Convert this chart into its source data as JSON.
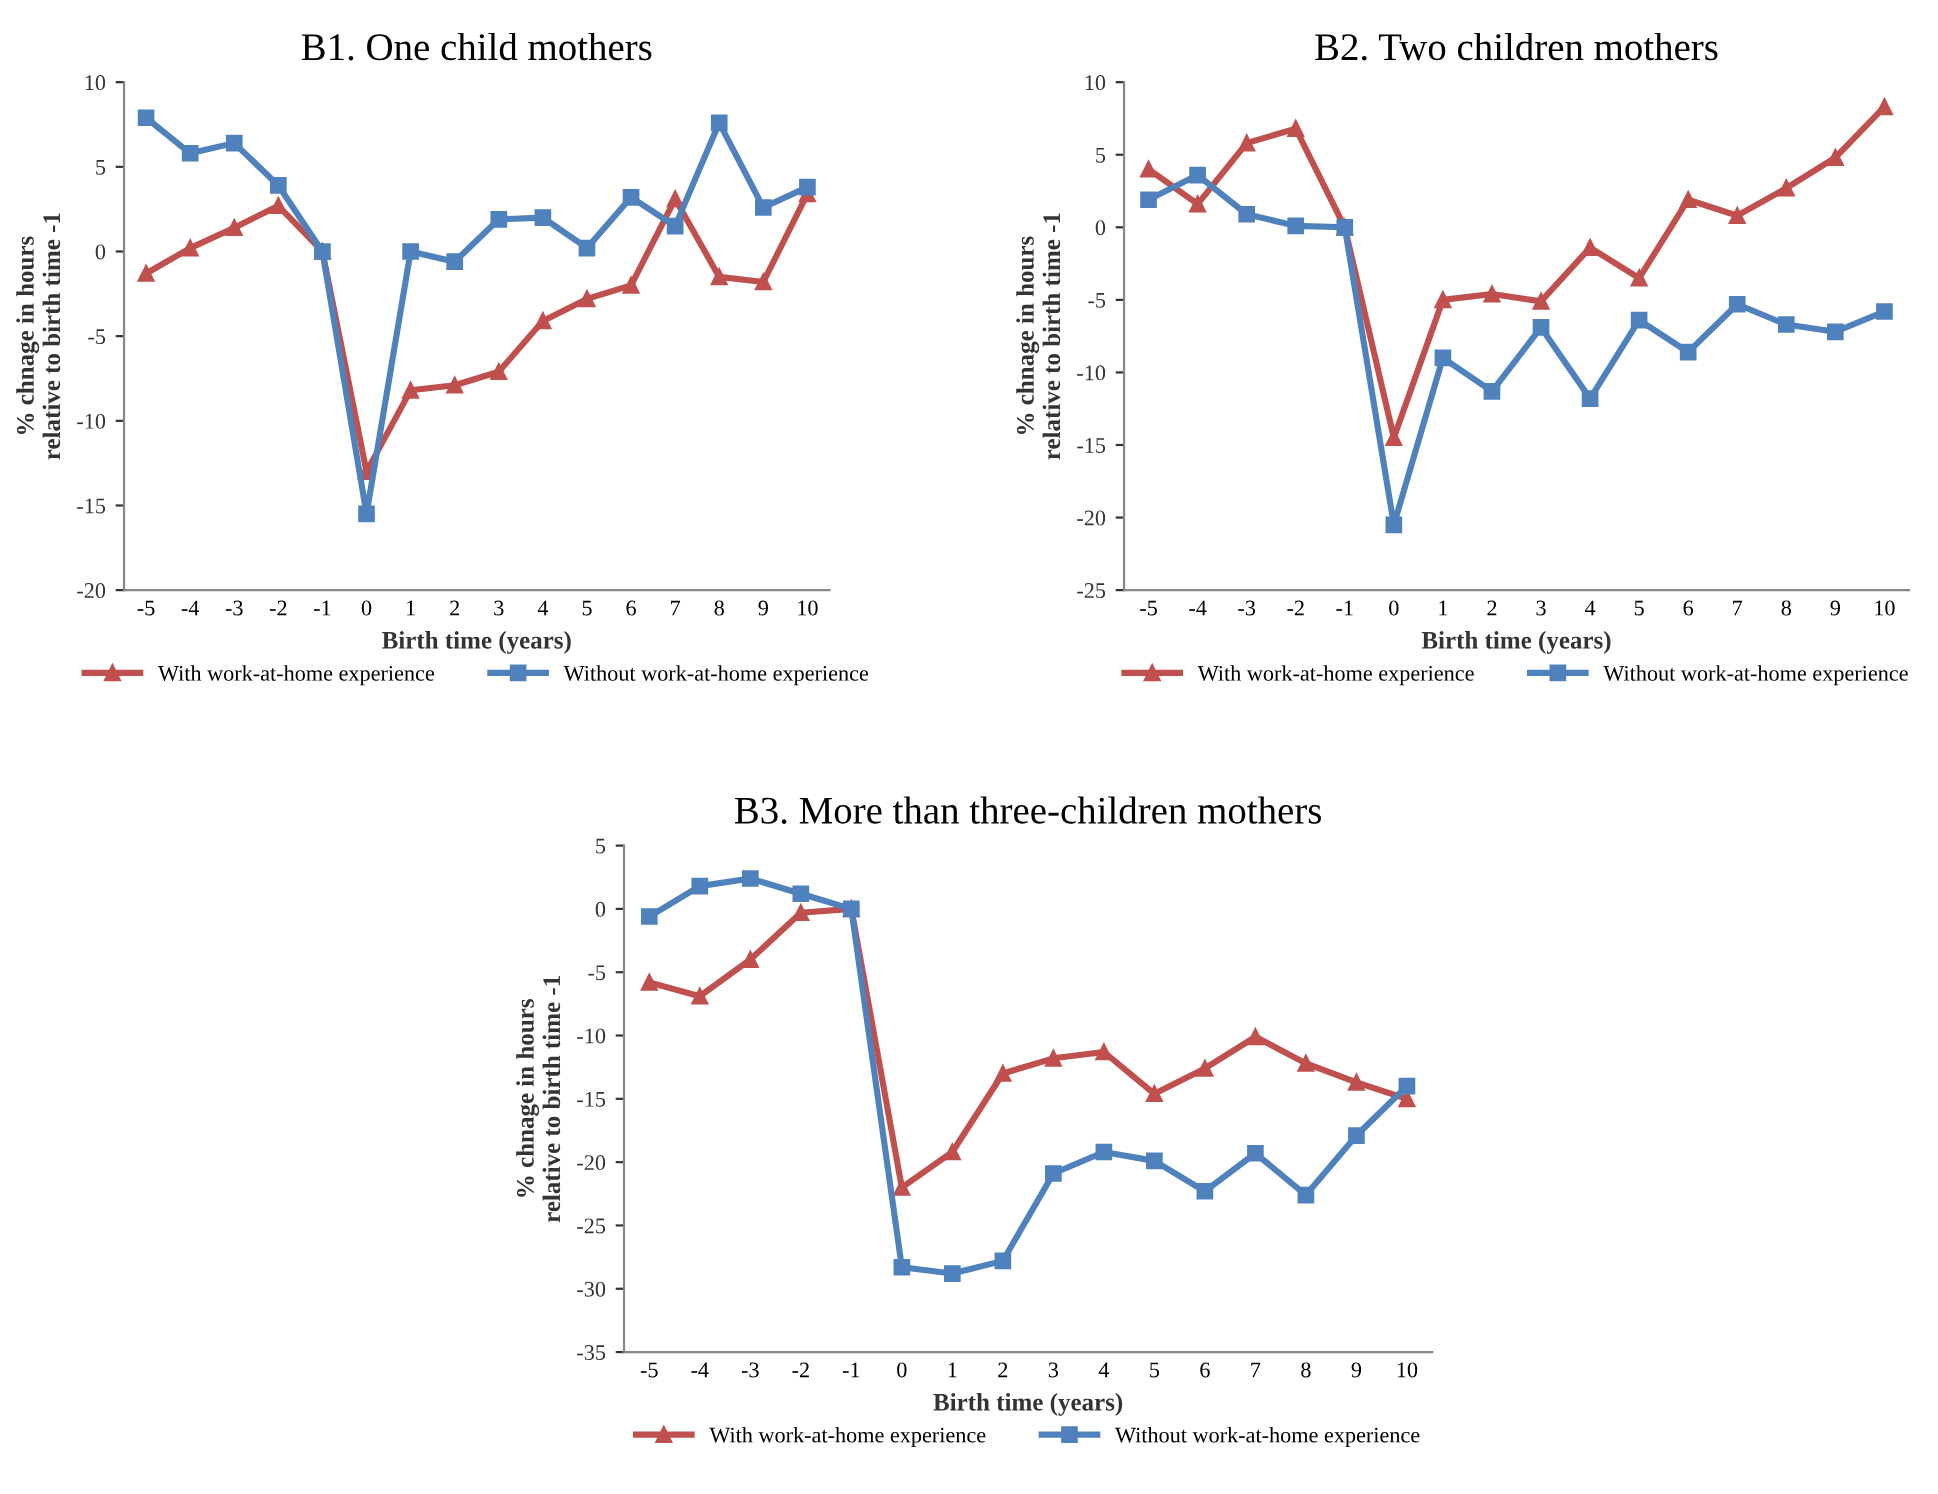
{
  "chart_data": [
    {
      "type": "line",
      "title": "B1. One child mothers",
      "xlabel": "Birth time (years)",
      "ylabel": "% chnage in hours\nrelative to birth time -1",
      "categories": [
        "-5",
        "-4",
        "-3",
        "-2",
        "-1",
        "0",
        "1",
        "2",
        "3",
        "4",
        "5",
        "6",
        "7",
        "8",
        "9",
        "10"
      ],
      "series": [
        {
          "name": "With work-at-home experience",
          "color": "#c0504d",
          "marker": "triangle",
          "values": [
            -1.3,
            0.2,
            1.4,
            2.7,
            0,
            -13,
            -8.2,
            -7.9,
            -7.1,
            -4.1,
            -2.8,
            -2.0,
            3.1,
            -1.5,
            -1.8,
            3.4
          ]
        },
        {
          "name": "Without work-at-home experience",
          "color": "#4f81bd",
          "marker": "square",
          "values": [
            7.9,
            5.8,
            6.4,
            3.9,
            0,
            -15.5,
            0,
            -0.6,
            1.9,
            2.0,
            0.2,
            3.2,
            1.5,
            7.6,
            2.6,
            3.8
          ]
        }
      ],
      "ylim": [
        -20,
        10
      ],
      "yticks": [
        -20,
        -15,
        -10,
        -5,
        0,
        5,
        10
      ],
      "grid": false,
      "legend": "bottom"
    },
    {
      "type": "line",
      "title": "B2. Two children mothers",
      "xlabel": "Birth time (years)",
      "ylabel": "% chnage in hours\nrelative to birth time -1",
      "categories": [
        "-5",
        "-4",
        "-3",
        "-2",
        "-1",
        "0",
        "1",
        "2",
        "3",
        "4",
        "5",
        "6",
        "7",
        "8",
        "9",
        "10"
      ],
      "series": [
        {
          "name": "With work-at-home experience",
          "color": "#c0504d",
          "marker": "triangle",
          "values": [
            4.0,
            1.6,
            5.8,
            6.8,
            0,
            -14.5,
            -5.0,
            -4.6,
            -5.1,
            -1.4,
            -3.5,
            1.9,
            0.8,
            2.7,
            4.8,
            8.3
          ]
        },
        {
          "name": "Without work-at-home experience",
          "color": "#4f81bd",
          "marker": "square",
          "values": [
            1.9,
            3.6,
            0.9,
            0.1,
            0,
            -20.5,
            -9.0,
            -11.3,
            -6.9,
            -11.8,
            -6.4,
            -8.6,
            -5.3,
            -6.7,
            -7.2,
            -5.8
          ]
        }
      ],
      "ylim": [
        -25,
        10
      ],
      "yticks": [
        -25,
        -20,
        -15,
        -10,
        -5,
        0,
        5,
        10
      ],
      "grid": false,
      "legend": "bottom"
    },
    {
      "type": "line",
      "title": "B3. More than three-children mothers",
      "xlabel": "Birth time (years)",
      "ylabel": "% chnage in hours\nrelative to birth time -1",
      "categories": [
        "-5",
        "-4",
        "-3",
        "-2",
        "-1",
        "0",
        "1",
        "2",
        "3",
        "4",
        "5",
        "6",
        "7",
        "8",
        "9",
        "10"
      ],
      "series": [
        {
          "name": "With work-at-home experience",
          "color": "#c0504d",
          "marker": "triangle",
          "values": [
            -5.8,
            -6.9,
            -4.0,
            -0.3,
            0,
            -22.0,
            -19.2,
            -13.0,
            -11.8,
            -11.3,
            -14.6,
            -12.6,
            -10.1,
            -12.2,
            -13.7,
            -15.0
          ]
        },
        {
          "name": "Without work-at-home experience",
          "color": "#4f81bd",
          "marker": "square",
          "values": [
            -0.6,
            1.8,
            2.4,
            1.2,
            0,
            -28.3,
            -28.8,
            -27.8,
            -20.9,
            -19.2,
            -19.9,
            -22.3,
            -19.3,
            -22.6,
            -17.9,
            -14.0
          ]
        }
      ],
      "ylim": [
        -35,
        5
      ],
      "yticks": [
        -35,
        -30,
        -25,
        -20,
        -15,
        -10,
        -5,
        0,
        5
      ],
      "grid": false,
      "legend": "bottom"
    }
  ]
}
